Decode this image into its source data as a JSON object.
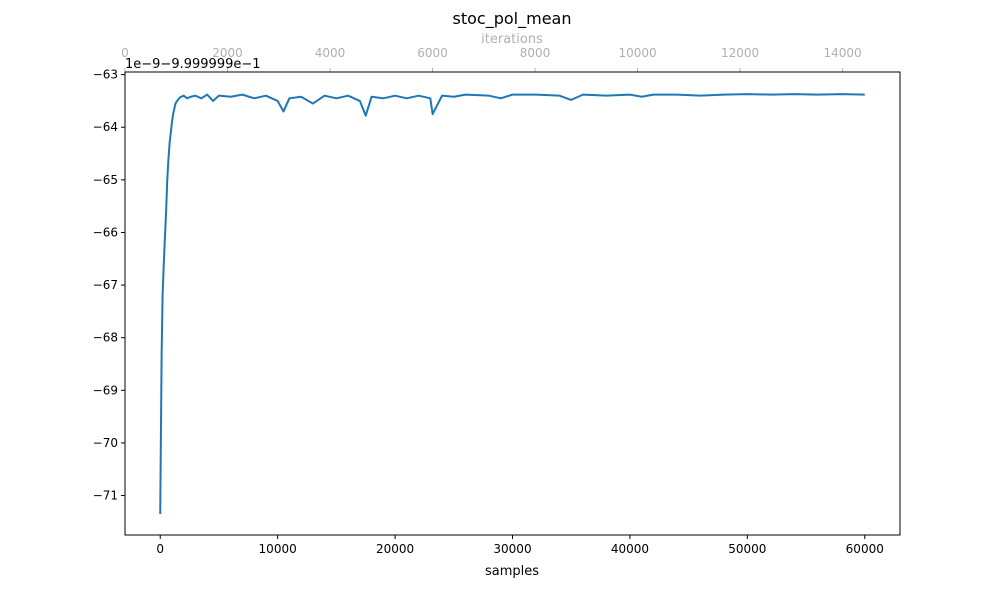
{
  "chart_data": {
    "type": "line",
    "title": "stoc_pol_mean",
    "xlabel": "samples",
    "ylabel": "",
    "offset_label": "1e−9−9.999999e−1",
    "xlim": [
      -3000,
      63000
    ],
    "ylim": [
      -71.75,
      -62.95
    ],
    "xticks": [
      0,
      10000,
      20000,
      30000,
      40000,
      50000,
      60000
    ],
    "xtick_labels": [
      "0",
      "10000",
      "20000",
      "30000",
      "40000",
      "50000",
      "60000"
    ],
    "yticks": [
      -71,
      -70,
      -69,
      -68,
      -67,
      -66,
      -65,
      -64,
      -63
    ],
    "ytick_labels": [
      "−71",
      "−70",
      "−69",
      "−68",
      "−67",
      "−66",
      "−65",
      "−64",
      "−63"
    ],
    "secondary_x": {
      "label": "iterations",
      "lim": [
        0,
        15120
      ],
      "ticks": [
        0,
        2000,
        4000,
        6000,
        8000,
        10000,
        12000,
        14000
      ],
      "tick_labels": [
        "0",
        "2000",
        "4000",
        "6000",
        "8000",
        "10000",
        "12000",
        "14000"
      ]
    },
    "grid": false,
    "colors": {
      "line": "#1f77b4",
      "secondary_axis": "#b0b0b0"
    },
    "series": [
      {
        "x": [
          0,
          60,
          120,
          200,
          300,
          400,
          500,
          600,
          700,
          800,
          900,
          1000,
          1100,
          1200,
          1300,
          1500,
          1700,
          2000,
          2300,
          2600,
          3000,
          3500,
          4000,
          4500,
          5000,
          6000,
          7000,
          8000,
          9000,
          10000,
          10500,
          11000,
          12000,
          13000,
          14000,
          15000,
          16000,
          17000,
          17500,
          18000,
          19000,
          20000,
          21000,
          22000,
          23000,
          23200,
          24000,
          25000,
          26000,
          28000,
          29000,
          30000,
          32000,
          34000,
          35000,
          36000,
          38000,
          40000,
          41000,
          42000,
          44000,
          46000,
          48000,
          50000,
          52000,
          54000,
          56000,
          58000,
          60000
        ],
        "y": [
          -71.35,
          -69.8,
          -68.3,
          -67.2,
          -66.6,
          -66.1,
          -65.6,
          -65.0,
          -64.6,
          -64.3,
          -64.1,
          -63.9,
          -63.75,
          -63.65,
          -63.55,
          -63.48,
          -63.43,
          -63.4,
          -63.45,
          -63.42,
          -63.4,
          -63.45,
          -63.38,
          -63.5,
          -63.4,
          -63.42,
          -63.38,
          -63.45,
          -63.4,
          -63.5,
          -63.7,
          -63.45,
          -63.42,
          -63.55,
          -63.4,
          -63.45,
          -63.4,
          -63.5,
          -63.78,
          -63.42,
          -63.45,
          -63.4,
          -63.45,
          -63.4,
          -63.45,
          -63.75,
          -63.4,
          -63.42,
          -63.38,
          -63.4,
          -63.45,
          -63.38,
          -63.38,
          -63.4,
          -63.48,
          -63.38,
          -63.4,
          -63.38,
          -63.42,
          -63.38,
          -63.38,
          -63.4,
          -63.38,
          -63.37,
          -63.38,
          -63.37,
          -63.38,
          -63.37,
          -63.38
        ]
      }
    ]
  }
}
